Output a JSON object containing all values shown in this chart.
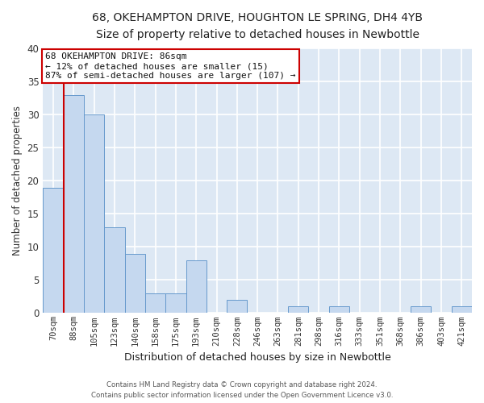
{
  "title": "68, OKEHAMPTON DRIVE, HOUGHTON LE SPRING, DH4 4YB",
  "subtitle": "Size of property relative to detached houses in Newbottle",
  "xlabel": "Distribution of detached houses by size in Newbottle",
  "ylabel": "Number of detached properties",
  "bar_color": "#c5d8ef",
  "bar_edge_color": "#6699cc",
  "bg_color": "#dde8f4",
  "fig_bg_color": "#ffffff",
  "grid_color": "#ffffff",
  "bin_labels": [
    "70sqm",
    "88sqm",
    "105sqm",
    "123sqm",
    "140sqm",
    "158sqm",
    "175sqm",
    "193sqm",
    "210sqm",
    "228sqm",
    "246sqm",
    "263sqm",
    "281sqm",
    "298sqm",
    "316sqm",
    "333sqm",
    "351sqm",
    "368sqm",
    "386sqm",
    "403sqm",
    "421sqm"
  ],
  "bin_values": [
    19,
    33,
    30,
    13,
    9,
    3,
    3,
    8,
    0,
    2,
    0,
    0,
    1,
    0,
    1,
    0,
    0,
    0,
    1,
    0,
    1
  ],
  "ylim": [
    0,
    40
  ],
  "yticks": [
    0,
    5,
    10,
    15,
    20,
    25,
    30,
    35,
    40
  ],
  "property_line_bin": 1,
  "annotation_title": "68 OKEHAMPTON DRIVE: 86sqm",
  "annotation_line1": "← 12% of detached houses are smaller (15)",
  "annotation_line2": "87% of semi-detached houses are larger (107) →",
  "annotation_box_color": "#ffffff",
  "annotation_border_color": "#cc0000",
  "property_line_color": "#cc0000",
  "footer_line1": "Contains HM Land Registry data © Crown copyright and database right 2024.",
  "footer_line2": "Contains public sector information licensed under the Open Government Licence v3.0."
}
